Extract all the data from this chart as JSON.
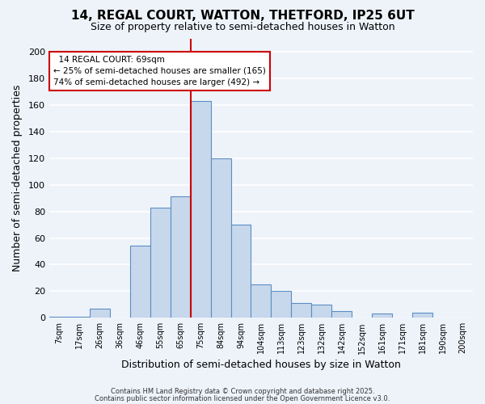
{
  "title": "14, REGAL COURT, WATTON, THETFORD, IP25 6UT",
  "subtitle": "Size of property relative to semi-detached houses in Watton",
  "xlabel": "Distribution of semi-detached houses by size in Watton",
  "ylabel": "Number of semi-detached properties",
  "bin_labels": [
    "7sqm",
    "17sqm",
    "26sqm",
    "36sqm",
    "46sqm",
    "55sqm",
    "65sqm",
    "75sqm",
    "84sqm",
    "94sqm",
    "104sqm",
    "113sqm",
    "123sqm",
    "132sqm",
    "142sqm",
    "152sqm",
    "161sqm",
    "171sqm",
    "181sqm",
    "190sqm",
    "200sqm"
  ],
  "bar_values": [
    1,
    1,
    7,
    0,
    54,
    83,
    91,
    163,
    120,
    70,
    25,
    20,
    11,
    10,
    5,
    0,
    3,
    0,
    4,
    0,
    0
  ],
  "bar_color": "#c8d8ec",
  "bar_edge_color": "#5b8ec4",
  "background_color": "#eef3fa",
  "grid_color": "#ffffff",
  "vline_x": 6.5,
  "vline_color": "#cc0000",
  "annotation_title": "14 REGAL COURT: 69sqm",
  "annotation_line1": "← 25% of semi-detached houses are smaller (165)",
  "annotation_line2": "74% of semi-detached houses are larger (492) →",
  "annotation_box_color": "#ffffff",
  "annotation_box_edge": "#cc0000",
  "ylim": [
    0,
    210
  ],
  "yticks": [
    0,
    20,
    40,
    60,
    80,
    100,
    120,
    140,
    160,
    180,
    200
  ],
  "footer1": "Contains HM Land Registry data © Crown copyright and database right 2025.",
  "footer2": "Contains public sector information licensed under the Open Government Licence v3.0."
}
